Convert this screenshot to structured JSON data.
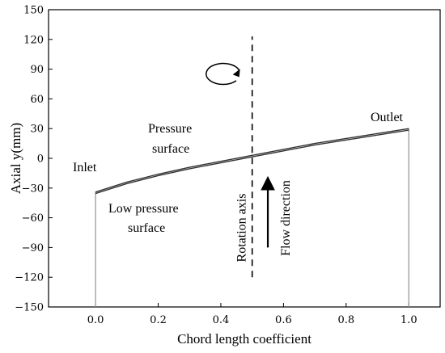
{
  "chart_data": {
    "type": "line",
    "xlabel": "Chord length coefficient",
    "ylabel": "Axial y(mm)",
    "xlim": [
      -0.15,
      1.1
    ],
    "ylim": [
      -150,
      150
    ],
    "x_ticks": [
      0.0,
      0.2,
      0.4,
      0.6,
      0.8,
      1.0
    ],
    "x_tick_labels": [
      "0.0",
      "0.2",
      "0.4",
      "0.6",
      "0.8",
      "1.0"
    ],
    "y_ticks": [
      150,
      120,
      90,
      60,
      30,
      0,
      -30,
      -60,
      -90,
      -120,
      -150
    ],
    "y_tick_labels": [
      "150",
      "120",
      "90",
      "60",
      "30",
      "0",
      "−30",
      "−60",
      "−90",
      "−120",
      "−150"
    ],
    "grid": false,
    "series": [
      {
        "x": [
          0,
          0.1,
          0.2,
          0.3,
          0.4,
          0.5,
          0.6,
          0.7,
          0.8,
          0.9,
          1.0
        ],
        "y": [
          -34,
          -24,
          -16,
          -9,
          -3,
          3,
          9,
          15,
          20,
          25,
          30
        ],
        "color": "#333333"
      },
      {
        "x": [
          0,
          0.1,
          0.2,
          0.3,
          0.4,
          0.5,
          0.6,
          0.7,
          0.8,
          0.9,
          1.0
        ],
        "y": [
          -35.5,
          -25.5,
          -17.5,
          -10.5,
          -4.5,
          1.5,
          7.5,
          13.5,
          18.5,
          23.5,
          28.5
        ],
        "color": "#333333"
      }
    ],
    "verticals": [
      {
        "x": 0.0,
        "y_from": -150,
        "y_to": -34,
        "color": "#999999"
      },
      {
        "x": 1.0,
        "y_from": -150,
        "y_to": 30,
        "color": "#999999"
      }
    ],
    "rotation_axis_x": 0.5,
    "rotation_axis_y": [
      -120,
      123
    ],
    "flow_arrow": {
      "x": 0.55,
      "y_from": -90,
      "y_to": -25
    },
    "annotations": {
      "inlet": "Inlet",
      "outlet": "Outlet",
      "pressure_line1": "Pressure",
      "pressure_line2": "surface",
      "low_line1": "Low pressure",
      "low_line2": "surface",
      "rotation_axis": "Rotation axis",
      "flow_direction": "Flow direction"
    }
  }
}
